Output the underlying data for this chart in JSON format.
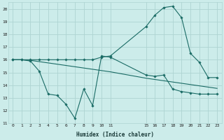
{
  "xlabel": "Humidex (Indice chaleur)",
  "bg_color": "#ccecea",
  "grid_color": "#aed4d2",
  "line_color": "#1a6b65",
  "xlim": [
    -0.5,
    23.5
  ],
  "ylim": [
    11,
    20.5
  ],
  "yticks": [
    11,
    12,
    13,
    14,
    15,
    16,
    17,
    18,
    19,
    20
  ],
  "xticks": [
    0,
    1,
    2,
    3,
    4,
    5,
    6,
    7,
    8,
    9,
    10,
    11,
    15,
    16,
    17,
    18,
    19,
    20,
    21,
    22,
    23
  ],
  "line1_x": [
    0,
    1,
    2,
    3,
    4,
    5,
    6,
    7,
    8,
    9,
    10,
    11,
    15,
    16,
    17,
    18,
    19,
    20,
    21,
    22,
    23
  ],
  "line1_y": [
    16.0,
    16.0,
    15.9,
    15.1,
    13.3,
    13.2,
    12.5,
    11.4,
    13.7,
    12.4,
    16.3,
    16.2,
    14.8,
    14.7,
    14.8,
    13.7,
    13.5,
    13.4,
    13.3,
    13.3,
    13.3
  ],
  "line2_x": [
    0,
    1,
    2,
    3,
    4,
    5,
    6,
    7,
    8,
    9,
    10,
    11,
    15,
    16,
    17,
    18,
    19,
    20,
    21,
    22,
    23
  ],
  "line2_y": [
    16.0,
    16.0,
    15.95,
    15.85,
    15.75,
    15.65,
    15.55,
    15.45,
    15.35,
    15.25,
    15.15,
    15.05,
    14.55,
    14.45,
    14.35,
    14.25,
    14.15,
    14.05,
    13.95,
    13.85,
    13.75
  ],
  "line3_x": [
    0,
    1,
    2,
    3,
    4,
    5,
    6,
    7,
    8,
    9,
    10,
    11,
    15,
    16,
    17,
    18,
    19,
    20,
    21,
    22,
    23
  ],
  "line3_y": [
    16.0,
    16.0,
    16.0,
    16.0,
    16.0,
    16.0,
    16.0,
    16.0,
    16.0,
    16.0,
    16.2,
    16.3,
    18.6,
    19.5,
    20.1,
    20.2,
    19.3,
    16.5,
    15.8,
    14.6,
    14.6
  ]
}
